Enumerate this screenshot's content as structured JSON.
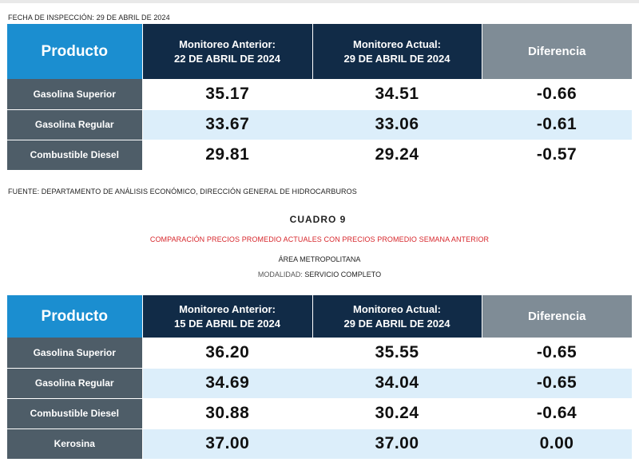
{
  "inspection_date": "FECHA DE INSPECCIÓN: 29 DE ABRIL DE 2024",
  "source": "FUENTE: DEPARTAMENTO DE ANÁLISIS ECONÓMICO, DIRECCIÓN GENERAL DE HIDROCARBUROS",
  "table_title": "CUADRO 9",
  "comparison_title": "COMPARACIÓN PRECIOS PROMEDIO ACTUALES CON PRECIOS PROMEDIO SEMANA ANTERIOR",
  "area": "ÁREA METROPOLITANA",
  "modality_label": "MODALIDAD:",
  "modality_value": "SERVICIO COMPLETO",
  "colors": {
    "product_header": "#1b8ed0",
    "monitoring_header": "#112b47",
    "difference_header": "#7f8c96",
    "product_cell": "#4e5d68",
    "alternate_row": "#dceefa",
    "comparison_title": "#d7262b"
  },
  "table1": {
    "headers": {
      "product": "Producto",
      "previous_line1": "Monitoreo Anterior:",
      "previous_line2": "22 DE ABRIL DE 2024",
      "current_line1": "Monitoreo Actual:",
      "current_line2": "29 DE ABRIL DE 2024",
      "difference": "Diferencia"
    },
    "rows": [
      {
        "product": "Gasolina Superior",
        "previous": "35.17",
        "current": "34.51",
        "difference": "-0.66"
      },
      {
        "product": "Gasolina Regular",
        "previous": "33.67",
        "current": "33.06",
        "difference": "-0.61"
      },
      {
        "product": "Combustible Diesel",
        "previous": "29.81",
        "current": "29.24",
        "difference": "-0.57"
      }
    ]
  },
  "table2": {
    "headers": {
      "product": "Producto",
      "previous_line1": "Monitoreo Anterior:",
      "previous_line2": "15 DE ABRIL DE 2024",
      "current_line1": "Monitoreo Actual:",
      "current_line2": "29 DE ABRIL DE 2024",
      "difference": "Diferencia"
    },
    "rows": [
      {
        "product": "Gasolina Superior",
        "previous": "36.20",
        "current": "35.55",
        "difference": "-0.65"
      },
      {
        "product": "Gasolina Regular",
        "previous": "34.69",
        "current": "34.04",
        "difference": "-0.65"
      },
      {
        "product": "Combustible Diesel",
        "previous": "30.88",
        "current": "30.24",
        "difference": "-0.64"
      },
      {
        "product": "Kerosina",
        "previous": "37.00",
        "current": "37.00",
        "difference": "0.00"
      }
    ]
  }
}
